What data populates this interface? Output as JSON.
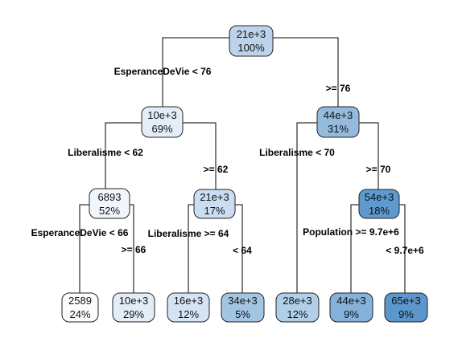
{
  "tree": {
    "nodes": [
      {
        "id": "n1",
        "value": "21e+3",
        "percent": "100%",
        "fill": "#bcd3ea"
      },
      {
        "id": "n2",
        "value": "10e+3",
        "percent": "69%",
        "fill": "#e4eef8"
      },
      {
        "id": "n3",
        "value": "44e+3",
        "percent": "31%",
        "fill": "#94bbdd"
      },
      {
        "id": "n4",
        "value": "6893",
        "percent": "52%",
        "fill": "#f1f6fc"
      },
      {
        "id": "n5",
        "value": "21e+3",
        "percent": "17%",
        "fill": "#cbddf0"
      },
      {
        "id": "n6",
        "value": "2589",
        "percent": "24%",
        "fill": "#fbfcfe"
      },
      {
        "id": "n7",
        "value": "10e+3",
        "percent": "29%",
        "fill": "#e3edf8"
      },
      {
        "id": "n8",
        "value": "16e+3",
        "percent": "12%",
        "fill": "#d5e4f4"
      },
      {
        "id": "n9",
        "value": "34e+3",
        "percent": "5%",
        "fill": "#a3c5e4"
      },
      {
        "id": "n10",
        "value": "28e+3",
        "percent": "12%",
        "fill": "#b1cfe8"
      },
      {
        "id": "n11",
        "value": "44e+3",
        "percent": "9%",
        "fill": "#84b2da"
      },
      {
        "id": "n12",
        "value": "65e+3",
        "percent": "9%",
        "fill": "#5b97cc"
      },
      {
        "id": "n13",
        "value": "54e+3",
        "percent": "18%",
        "fill": "#5e9acd"
      }
    ],
    "splits": [
      {
        "id": "s1",
        "label": "EsperanceDeVie < 76"
      },
      {
        "id": "s2",
        "label": ">= 76"
      },
      {
        "id": "s3",
        "label": "Liberalisme < 62"
      },
      {
        "id": "s4",
        "label": ">= 62"
      },
      {
        "id": "s5",
        "label": "Liberalisme < 70"
      },
      {
        "id": "s6",
        "label": ">= 70"
      },
      {
        "id": "s7",
        "label": "EsperanceDeVie < 66"
      },
      {
        "id": "s8",
        "label": ">= 66"
      },
      {
        "id": "s9",
        "label": "Liberalisme >= 64"
      },
      {
        "id": "s10",
        "label": "< 64"
      },
      {
        "id": "s11",
        "label": "Population >= 9.7e+6"
      },
      {
        "id": "s12",
        "label": "< 9.7e+6"
      }
    ]
  }
}
